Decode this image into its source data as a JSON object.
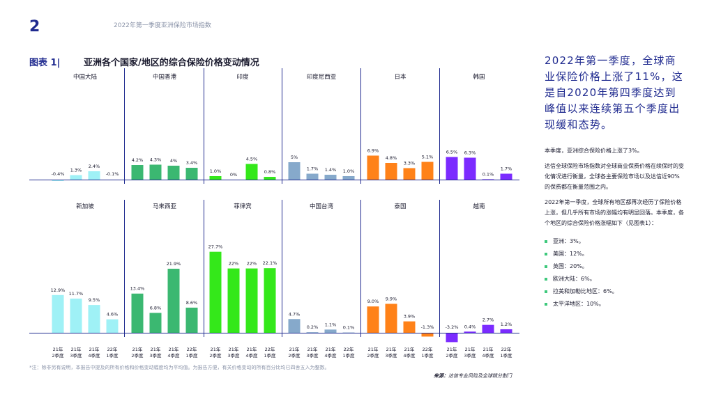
{
  "header": {
    "page_number": "2",
    "doc_title": "2022年第一季度亚洲保险市场指数",
    "figure_label": "图表 1|",
    "figure_title": "亚洲各个国家/地区的综合保险价格变动情况"
  },
  "chart_data": {
    "type": "bar",
    "title": "亚洲各个国家/地区的综合保险价格变动情况",
    "x_tick_labels": [
      [
        "21年",
        "2季度"
      ],
      [
        "21年",
        "3季度"
      ],
      [
        "21年",
        "4季度"
      ],
      [
        "22年",
        "1季度"
      ]
    ],
    "panels": [
      {
        "name": "中国大陆",
        "color": "#9ff1f6",
        "values": [
          -0.4,
          1.3,
          2.4,
          -0.1
        ],
        "labels": [
          "-0.4%",
          "1.3%",
          "2.4%",
          "-0.1%"
        ]
      },
      {
        "name": "中国香港",
        "color": "#3bb871",
        "values": [
          4.2,
          4.3,
          4,
          3.4
        ],
        "labels": [
          "4.2%",
          "4.3%",
          "4%",
          "3.4%"
        ]
      },
      {
        "name": "印度",
        "color": "#34e81a",
        "values": [
          1.0,
          0,
          4.5,
          0.8
        ],
        "labels": [
          "1.0%",
          "0%",
          "4.5%",
          "0.8%"
        ]
      },
      {
        "name": "印度尼西亚",
        "color": "#86a9cb",
        "values": [
          5,
          1.7,
          1.4,
          1.0
        ],
        "labels": [
          "5%",
          "1.7%",
          "1.4%",
          "1.0%"
        ]
      },
      {
        "name": "日本",
        "color": "#ff8219",
        "values": [
          6.9,
          4.8,
          3.3,
          5.1
        ],
        "labels": [
          "6.9%",
          "4.8%",
          "3.3%",
          "5.1%"
        ]
      },
      {
        "name": "韩国",
        "color": "#7b2bff",
        "values": [
          6.5,
          6.3,
          0.1,
          1.7
        ],
        "labels": [
          "6.5%",
          "6.3%",
          "0.1%",
          "1.7%"
        ]
      },
      {
        "name": "新加坡",
        "color": "#9ff1f6",
        "values": [
          12.9,
          11.7,
          9.5,
          4.6
        ],
        "labels": [
          "12.9%",
          "11.7%",
          "9.5%",
          "4.6%"
        ]
      },
      {
        "name": "马来西亚",
        "color": "#3bb871",
        "values": [
          13.4,
          6.8,
          21.9,
          8.6
        ],
        "labels": [
          "13.4%",
          "6.8%",
          "21.9%",
          "8.6%"
        ]
      },
      {
        "name": "菲律宾",
        "color": "#34e81a",
        "values": [
          27.7,
          22,
          22,
          22.1
        ],
        "labels": [
          "27.7%",
          "22%",
          "22%",
          "22.1%"
        ]
      },
      {
        "name": "中国台湾",
        "color": "#86a9cb",
        "values": [
          4.7,
          0.2,
          1.1,
          0.1
        ],
        "labels": [
          "4.7%",
          "0.2%",
          "1.1%",
          "0.1%"
        ]
      },
      {
        "name": "泰国",
        "color": "#ff8219",
        "values": [
          9.0,
          9.9,
          3.9,
          -1.3
        ],
        "labels": [
          "9.0%",
          "9.9%",
          "3.9%",
          "-1.3%"
        ]
      },
      {
        "name": "越南",
        "color": "#7b2bff",
        "values": [
          -3.2,
          0.4,
          2.7,
          1.2
        ],
        "labels": [
          "-3.2%",
          "0.4%",
          "2.7%",
          "1.2%"
        ]
      }
    ]
  },
  "footnote": "*注：除非另有说明，本报告中提及的所有价格和价格变动幅度均为平均值。为报告方便，有关价格变动的所有百分比均已四舍五入为整数。",
  "source": {
    "label": "来源：",
    "text": "达信专业风险及全球精分割门"
  },
  "sidebar": {
    "headline": "2022年第一季度，全球商业保险价格上涨了11%，这是自2020年第四季度达到峰值以来连续第五个季度出现缓和态势。",
    "paragraphs": [
      "本季度，亚洲综合保险价格上涨了3%。",
      "达信全球保险市场指数对全球商业保费价格在续保时的变化情况进行衡量，全球各主要保险市场以及达信近90%的保费都在衡量范围之内。",
      "2022年第一季度，全球所有地区都再次经历了保险价格上涨，但几乎所有市场的涨幅均有明显回落。本季度，各个地区的综合保险价格涨幅如下（见图表1）："
    ],
    "bullets": [
      "亚洲：3%。",
      "美国：12%。",
      "英国：20%。",
      "欧洲大陆：6%。",
      "拉美和加勒比地区：6%。",
      "太平洋地区：10%。"
    ]
  }
}
